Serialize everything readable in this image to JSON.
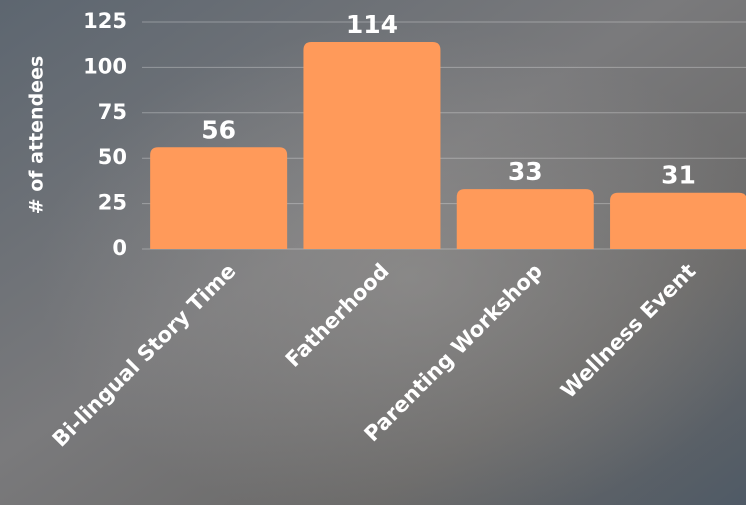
{
  "chart_data": {
    "type": "bar",
    "y_label": "# of attendees",
    "categories": [
      "Bi-lingual Story Time",
      "Fatherhood",
      "Parenting Workshop",
      "Wellness Event"
    ],
    "values": [
      56,
      114,
      33,
      31
    ],
    "color": "#ff9a5a",
    "ylim": [
      0,
      125
    ],
    "yticks": [
      0,
      25,
      50,
      75,
      100,
      125
    ],
    "grid": true
  }
}
